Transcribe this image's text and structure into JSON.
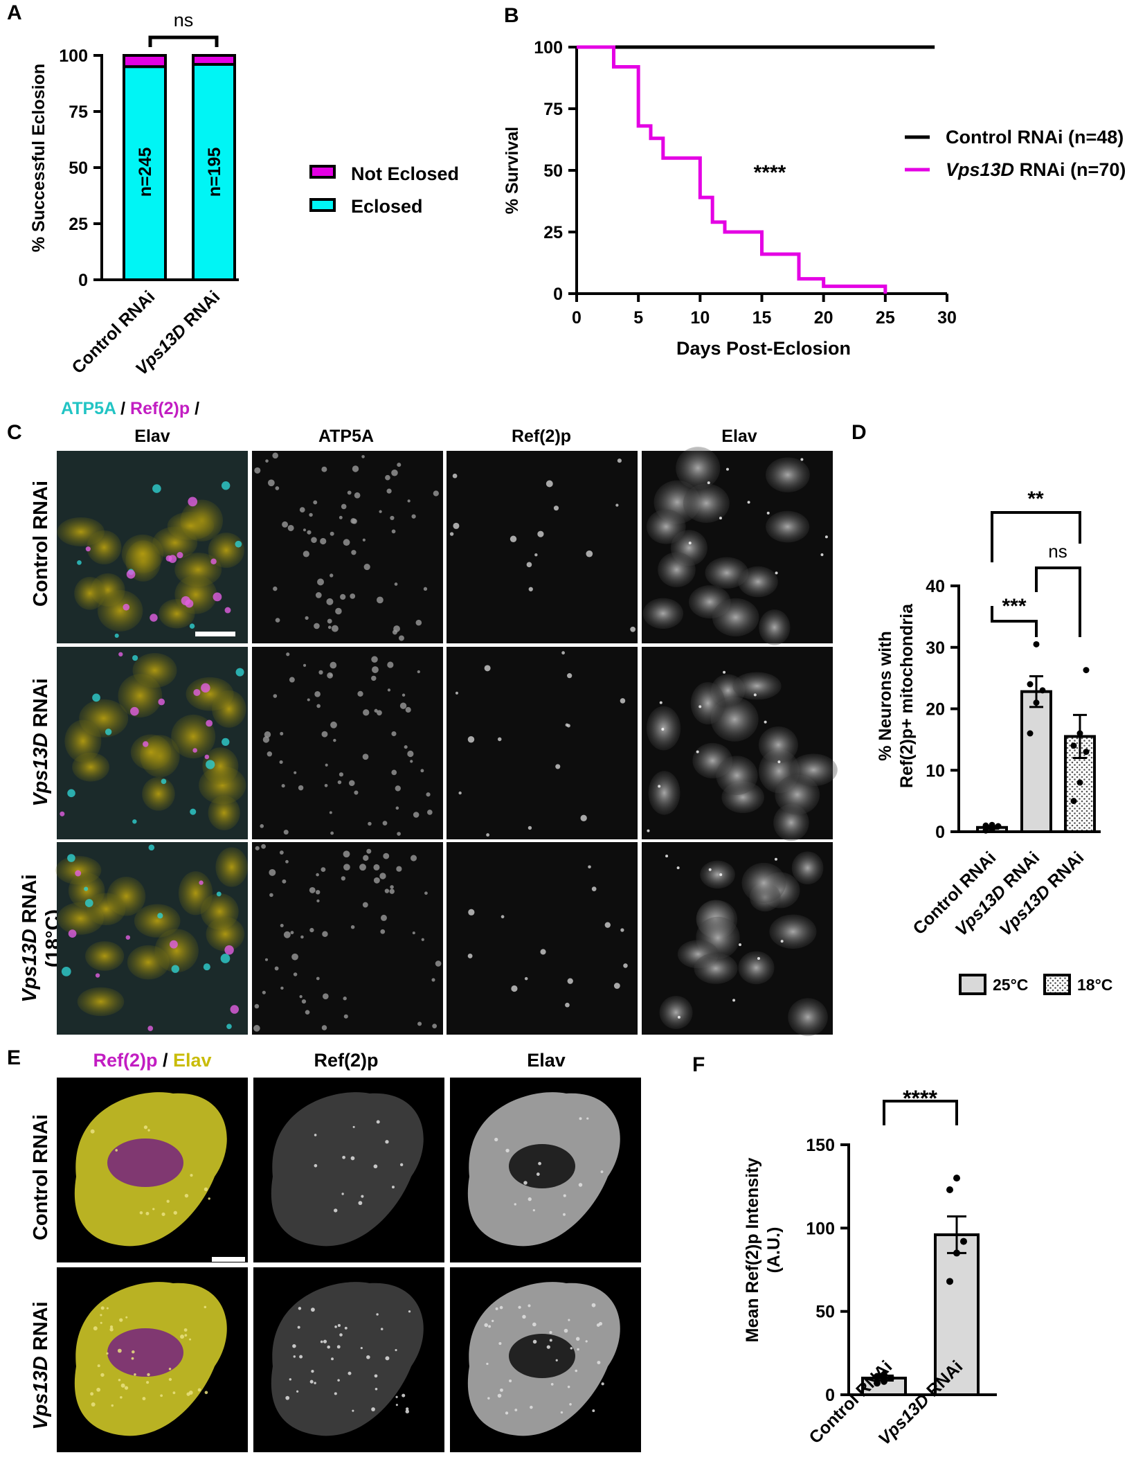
{
  "colors": {
    "cyan": "#00F5F5",
    "magenta": "#E400E4",
    "yellow": "#E9E400",
    "bar_gray": "#D9D9D9",
    "cyan_text": "#22C4C4",
    "magenta_text": "#C21DC2",
    "yellow_text": "#C9BC08"
  },
  "panels": {
    "A": {
      "letter": "A",
      "sig": "ns",
      "ylabel": "%  Successful Eclosion",
      "legend": [
        {
          "label": "Not Eclosed",
          "color_key": "magenta"
        },
        {
          "label": "Eclosed",
          "color_key": "cyan"
        }
      ],
      "categories": [
        {
          "pre": "Control RNAi",
          "ital": "",
          "post": ""
        },
        {
          "pre": "",
          "ital": "Vps13D",
          "post": " RNAi"
        }
      ]
    },
    "B": {
      "letter": "B",
      "sig": "****",
      "ylabel": "% Survival",
      "xlabel": "Days Post-Eclosion",
      "legend": [
        {
          "pre": "Control RNAi (n=48)",
          "ital": "",
          "post": "",
          "color_key": "black"
        },
        {
          "pre": "",
          "ital": "Vps13D",
          "post": " RNAi (n=70)",
          "color_key": "magenta"
        }
      ]
    },
    "C": {
      "letter": "C",
      "merge_title": {
        "p1": "ATP5A",
        "p2": " / ",
        "p3": "Ref(2)p",
        "p4": " /",
        "p5": "Elav"
      },
      "columns": [
        "ATP5A",
        "Ref(2)p",
        "Elav"
      ],
      "rows": [
        {
          "pre": "Control RNAi",
          "ital": "",
          "post": "",
          "line2": ""
        },
        {
          "pre": "",
          "ital": "Vps13D",
          "post": " RNAi",
          "line2": ""
        },
        {
          "pre": "",
          "ital": "Vps13D",
          "post": " RNAi",
          "line2": "(18°C)"
        }
      ]
    },
    "D": {
      "letter": "D",
      "ylabel_line1": "% Neurons with",
      "ylabel_line2": "Ref(2)p+ mitochondria",
      "sig_top": "**",
      "sig_mid": "ns",
      "sig_low": "***",
      "categories": [
        {
          "pre": "Control RNAi",
          "ital": "",
          "post": ""
        },
        {
          "pre": "",
          "ital": "Vps13D",
          "post": " RNAi"
        },
        {
          "pre": "",
          "ital": "Vps13D",
          "post": " RNAi"
        }
      ],
      "legend": [
        {
          "label": "25°C",
          "pattern": "solid"
        },
        {
          "label": "18°C",
          "pattern": "dots"
        }
      ]
    },
    "E": {
      "letter": "E",
      "merge_title": {
        "p1": "Ref(2)p",
        "p2": " / ",
        "p3": "Elav"
      },
      "columns": [
        "Ref(2)p",
        "Elav"
      ],
      "rows": [
        {
          "pre": "Control RNAi",
          "ital": "",
          "post": ""
        },
        {
          "pre": "",
          "ital": "Vps13D",
          "post": " RNAi"
        }
      ]
    },
    "F": {
      "letter": "F",
      "ylabel_line1": "Mean Ref(2)p Intensity",
      "ylabel_line2": "(A.U.)",
      "sig": "****",
      "categories": [
        {
          "pre": "Control RNAi",
          "ital": "",
          "post": ""
        },
        {
          "pre": "",
          "ital": "Vps13D",
          "post": " RNAi"
        }
      ]
    }
  },
  "chart_data": [
    {
      "panel": "A",
      "type": "bar",
      "stacked": true,
      "categories": [
        "Control RNAi",
        "Vps13D RNAi"
      ],
      "series": [
        {
          "name": "Eclosed",
          "values": [
            95,
            96
          ],
          "color": "#00F5F5"
        },
        {
          "name": "Not Eclosed",
          "values": [
            5,
            4
          ],
          "color": "#E400E4"
        }
      ],
      "bar_labels": [
        "n=245",
        "n=195"
      ],
      "ylim": [
        0,
        100
      ],
      "yticks": [
        0,
        25,
        50,
        75,
        100
      ],
      "legend_position": "right",
      "annotation": "ns"
    },
    {
      "panel": "B",
      "type": "line",
      "step": true,
      "xlim": [
        0,
        30
      ],
      "ylim": [
        0,
        100
      ],
      "xticks": [
        0,
        5,
        10,
        15,
        20,
        25,
        30
      ],
      "yticks": [
        0,
        25,
        50,
        75,
        100
      ],
      "series": [
        {
          "name": "Control RNAi (n=48)",
          "color": "#000000",
          "x": [
            0,
            29
          ],
          "y": [
            100,
            100
          ]
        },
        {
          "name": "Vps13D RNAi (n=70)",
          "color": "#E400E4",
          "x": [
            0,
            3,
            5,
            6,
            7,
            10,
            11,
            12,
            15,
            18,
            20,
            25
          ],
          "y": [
            100,
            92,
            68,
            63,
            55,
            39,
            29,
            25,
            16,
            6,
            3,
            0
          ]
        }
      ],
      "legend_position": "right",
      "annotation": "****"
    },
    {
      "panel": "D",
      "type": "bar",
      "categories": [
        "Control RNAi",
        "Vps13D RNAi",
        "Vps13D RNAi"
      ],
      "values": [
        0.7,
        22.8,
        15.5
      ],
      "sem": [
        0.2,
        2.5,
        3.5
      ],
      "points": [
        [
          0.2,
          0.4,
          0.9,
          1.0,
          1.1
        ],
        [
          16,
          21,
          23,
          24,
          30.5
        ],
        [
          5,
          8,
          13,
          14,
          16,
          26.3
        ]
      ],
      "fills": [
        "solid",
        "solid",
        "dots"
      ],
      "ylim": [
        0,
        40
      ],
      "yticks": [
        0,
        10,
        20,
        30,
        40
      ],
      "legend_position": "bottom"
    },
    {
      "panel": "F",
      "type": "bar",
      "categories": [
        "Control RNAi",
        "Vps13D RNAi"
      ],
      "values": [
        10,
        96
      ],
      "sem": [
        1.5,
        11
      ],
      "points": [
        [
          7,
          8,
          10,
          11,
          12
        ],
        [
          68,
          85,
          92,
          123,
          130
        ]
      ],
      "ylim": [
        0,
        150
      ],
      "yticks": [
        0,
        50,
        100,
        150
      ]
    }
  ]
}
